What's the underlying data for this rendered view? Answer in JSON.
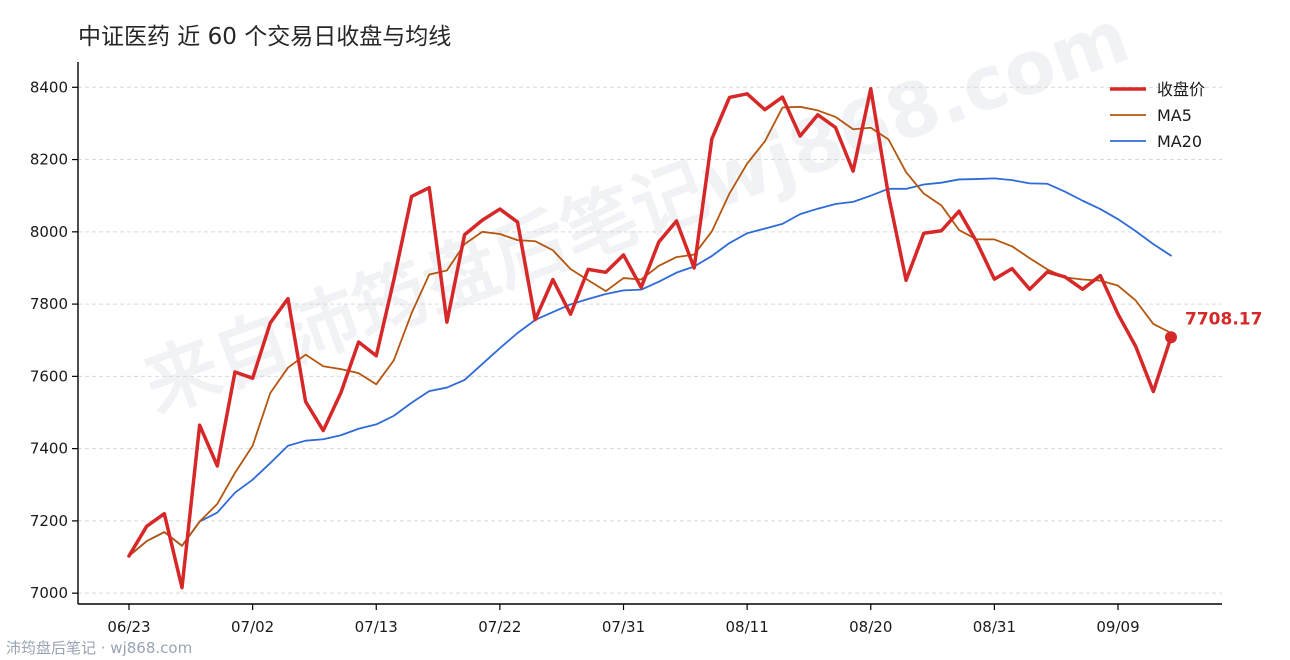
{
  "title": "中证医药 近 60 个交易日收盘与均线",
  "watermark": "来自沛筠盘后笔记wj868.com",
  "footer": "沛筠盘后笔记 · wj868.com",
  "chart_data": {
    "type": "line",
    "ylim": [
      6970,
      8470
    ],
    "yticks": [
      7000,
      7200,
      7400,
      7600,
      7800,
      8000,
      8200,
      8400
    ],
    "xtick_labels": [
      {
        "index": 0,
        "label": "06/23"
      },
      {
        "index": 7,
        "label": "07/02"
      },
      {
        "index": 14,
        "label": "07/13"
      },
      {
        "index": 21,
        "label": "07/22"
      },
      {
        "index": 28,
        "label": "07/31"
      },
      {
        "index": 35,
        "label": "08/11"
      },
      {
        "index": 42,
        "label": "08/20"
      },
      {
        "index": 49,
        "label": "08/31"
      },
      {
        "index": 56,
        "label": "09/09"
      }
    ],
    "grid": "horizontal-dashed",
    "legend_position": "top-right",
    "series": [
      {
        "name": "收盘价",
        "color": "#d62828",
        "width": 3.5,
        "values": [
          7103,
          7185,
          7220,
          7015,
          7465,
          7352,
          7612,
          7595,
          7748,
          7815,
          7530,
          7450,
          7555,
          7695,
          7657,
          7868,
          8098,
          8122,
          7750,
          7992,
          8032,
          8063,
          8027,
          7757,
          7868,
          7772,
          7896,
          7888,
          7936,
          7846,
          7972,
          8030,
          7900,
          8257,
          8372,
          8382,
          8338,
          8373,
          8265,
          8324,
          8289,
          8168,
          8396,
          8102,
          7866,
          7996,
          8003,
          8057,
          7972,
          7869,
          7898,
          7841,
          7889,
          7875,
          7841,
          7879,
          7772,
          7683,
          7558,
          7708.17
        ]
      },
      {
        "name": "MA5",
        "color": "#b5560f",
        "width": 1.8,
        "values": [
          7103,
          7144,
          7169,
          7131,
          7198,
          7247,
          7333,
          7408,
          7554,
          7624,
          7660,
          7628,
          7620,
          7609,
          7578,
          7645,
          7775,
          7882,
          7893,
          7966,
          8000,
          7994,
          7977,
          7974,
          7949,
          7897,
          7866,
          7836,
          7872,
          7868,
          7906,
          7930,
          7937,
          8001,
          8106,
          8189,
          8250,
          8344,
          8346,
          8336,
          8318,
          8284,
          8288,
          8256,
          8165,
          8106,
          8073,
          8005,
          7979,
          7979,
          7960,
          7927,
          7896,
          7874,
          7868,
          7865,
          7851,
          7810,
          7745,
          7720
        ]
      },
      {
        "name": "MA20",
        "color": "#2e6bd8",
        "width": 1.8,
        "values": [
          7103,
          7144,
          7169,
          7131,
          7198,
          7223,
          7278,
          7314,
          7360,
          7408,
          7422,
          7426,
          7437,
          7455,
          7467,
          7491,
          7527,
          7559,
          7569,
          7590,
          7634,
          7678,
          7720,
          7756,
          7778,
          7799,
          7814,
          7828,
          7838,
          7840,
          7862,
          7887,
          7904,
          7933,
          7969,
          7996,
          8009,
          8022,
          8049,
          8064,
          8077,
          8083,
          8100,
          8119,
          8119,
          8131,
          8136,
          8145,
          8146,
          8148,
          8143,
          8134,
          8133,
          8111,
          8086,
          8063,
          8035,
          8002,
          7966,
          7934
        ]
      }
    ],
    "last_value_label": "7708.17"
  }
}
